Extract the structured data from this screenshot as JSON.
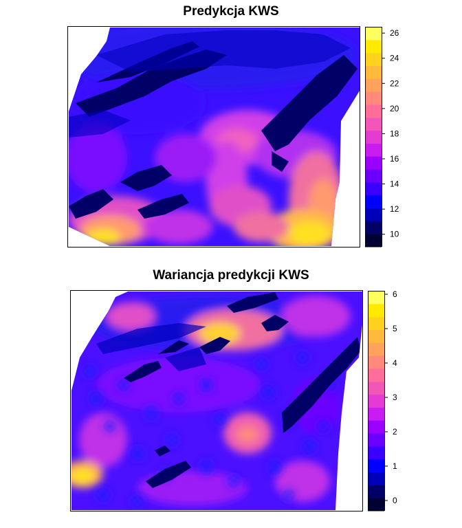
{
  "chart_data": [
    {
      "type": "heatmap",
      "title": "Predykcja KWS",
      "xlabel": "",
      "ylabel": "",
      "legend_position": "right",
      "colorbar": {
        "range": [
          9,
          26.5
        ],
        "ticks": [
          10,
          12,
          14,
          16,
          18,
          20,
          22,
          24,
          26
        ],
        "tick_labels": [
          "10",
          "12",
          "14",
          "16",
          "18",
          "20",
          "22",
          "24",
          "26"
        ],
        "colors": [
          "#000033",
          "#000066",
          "#0000BB",
          "#0000FF",
          "#3A00FF",
          "#6B00FF",
          "#9B00FF",
          "#C81CF0",
          "#E43CD3",
          "#F256B6",
          "#FF6E9A",
          "#FF8A7B",
          "#FFA25C",
          "#FFBA3D",
          "#FFD21E",
          "#FFEA00",
          "#FFFF60"
        ]
      },
      "grid": false
    },
    {
      "type": "heatmap",
      "title": "Wariancja predykcji KWS",
      "xlabel": "",
      "ylabel": "",
      "legend_position": "right",
      "colorbar": {
        "range": [
          -0.3,
          6.1
        ],
        "ticks": [
          0,
          1,
          2,
          3,
          4,
          5,
          6
        ],
        "tick_labels": [
          "0",
          "1",
          "2",
          "3",
          "4",
          "5",
          "6"
        ],
        "colors": [
          "#000033",
          "#000066",
          "#0000BB",
          "#0000FF",
          "#3A00FF",
          "#6B00FF",
          "#9B00FF",
          "#C81CF0",
          "#E43CD3",
          "#F256B6",
          "#FF6E9A",
          "#FF8A7B",
          "#FFA25C",
          "#FFBA3D",
          "#FFD21E",
          "#FFEA00",
          "#FFFF60"
        ]
      },
      "grid": false
    }
  ]
}
